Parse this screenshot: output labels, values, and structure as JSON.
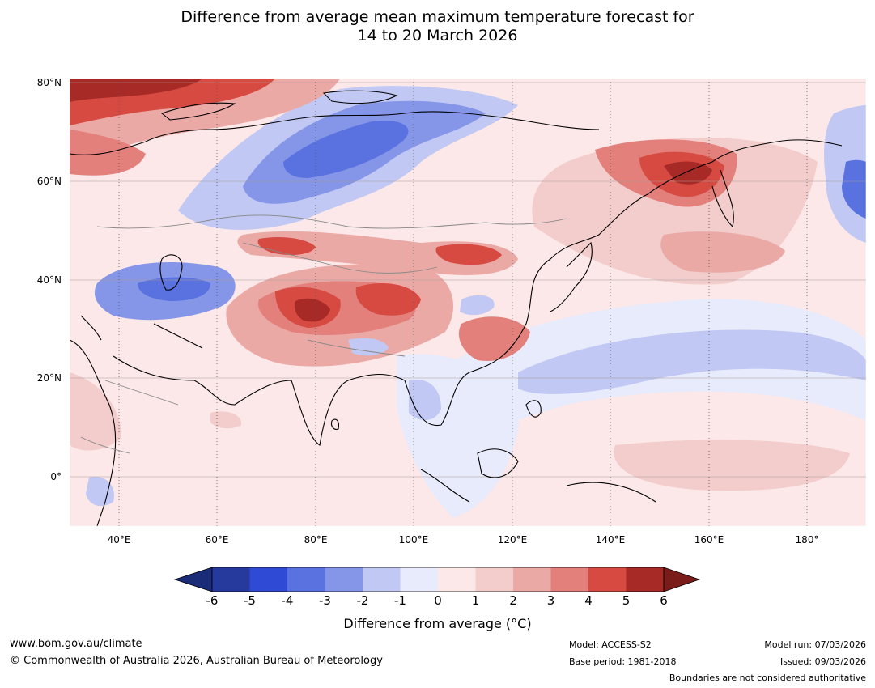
{
  "title": {
    "line1": "Difference from average mean maximum temperature forecast for",
    "line2": "14 to 20 March 2026"
  },
  "axes": {
    "lat_labels": [
      "80°N",
      "60°N",
      "40°N",
      "20°N",
      "0°"
    ],
    "lon_labels": [
      "40°E",
      "60°E",
      "80°E",
      "100°E",
      "120°E",
      "140°E",
      "160°E",
      "180°"
    ]
  },
  "map_data": {
    "lon_range": [
      30,
      192
    ],
    "lat_range": [
      -10,
      81
    ],
    "anomaly_regions": [
      {
        "region": "Arctic coast north of Scandinavia",
        "anomaly": 6
      },
      {
        "region": "West Siberia",
        "anomaly": -4
      },
      {
        "region": "Kazakhstan / Caspian",
        "anomaly": -3
      },
      {
        "region": "Tibetan Plateau / Himalaya",
        "anomaly": 6
      },
      {
        "region": "Mongolia / North China",
        "anomaly": 4
      },
      {
        "region": "Southern China",
        "anomaly": 3
      },
      {
        "region": "Eastern Siberia / Magadan",
        "anomaly": 5
      },
      {
        "region": "Northwest Pacific band",
        "anomaly": -2
      },
      {
        "region": "Bering Sea",
        "anomaly": -5
      },
      {
        "region": "Indochina / South China Sea",
        "anomaly": -1
      },
      {
        "region": "Indian Ocean / Arabian Sea",
        "anomaly": 0.5
      }
    ]
  },
  "colorbar": {
    "ticks": [
      "-6",
      "-5",
      "-4",
      "-3",
      "-2",
      "-1",
      "0",
      "1",
      "2",
      "3",
      "4",
      "5",
      "6"
    ],
    "colors": [
      "#263a9e",
      "#2f4bd6",
      "#5a72e0",
      "#8595e8",
      "#c0c8f3",
      "#e8ebfb",
      "#fce8e8",
      "#f3cccc",
      "#eba9a6",
      "#e3807b",
      "#d64a42",
      "#a82a26"
    ],
    "low_extend_color": "#1a2c78",
    "high_extend_color": "#7a1c1a",
    "label": "Difference from average (°C)"
  },
  "footer": {
    "url": "www.bom.gov.au/climate",
    "copyright": "© Commonwealth of Australia 2026, Australian Bureau of Meteorology",
    "model": "Model: ACCESS-S2",
    "base_period": "Base period: 1981-2018",
    "model_run": "Model run: 07/03/2026",
    "issued": "Issued: 09/03/2026",
    "disclaimer": "Boundaries are not considered authoritative"
  }
}
